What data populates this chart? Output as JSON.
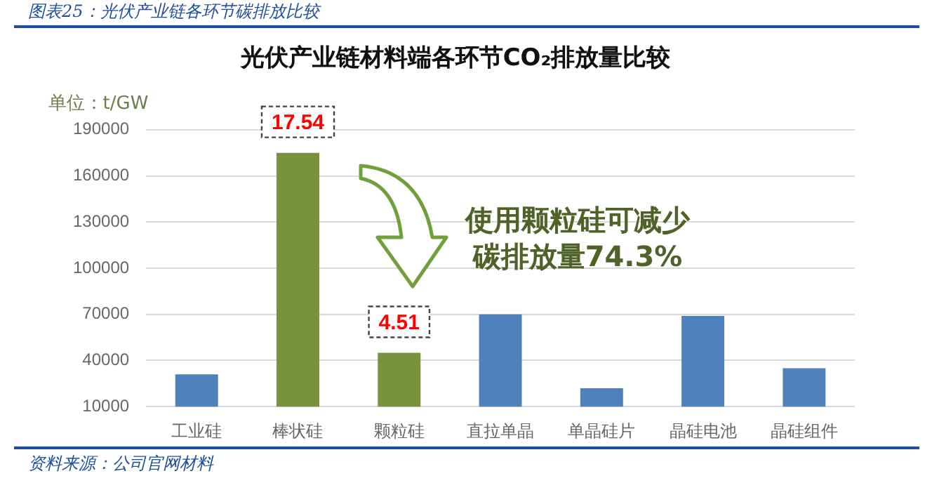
{
  "chart_data": {
    "type": "bar",
    "title": "图表25：光伏产业链各环节碳排放比较",
    "subtitle": "光伏产业链材料端各环节CO₂排放量比较",
    "ylabel": "单位：t/GW",
    "categories": [
      "工业硅",
      "棒状硅",
      "颗粒硅",
      "直拉单晶",
      "单晶硅片",
      "晶硅电池",
      "晶硅组件"
    ],
    "values": [
      31000,
      175000,
      45000,
      70000,
      22000,
      69000,
      35000
    ],
    "colors": [
      "#4f81bd",
      "#77933c",
      "#77933c",
      "#4f81bd",
      "#4f81bd",
      "#4f81bd",
      "#4f81bd"
    ],
    "ylim": [
      10000,
      190000
    ],
    "yticks": [
      10000,
      40000,
      70000,
      100000,
      130000,
      160000,
      190000
    ],
    "grid": "y",
    "annotations": [
      {
        "text": "17.54",
        "x": "棒状硅",
        "y": 175000
      },
      {
        "text": "4.51",
        "x": "颗粒硅",
        "y": 45000
      },
      "使用颗粒硅可减少",
      "碳排放量74.3%",
      "资料来源：公司官网材料"
    ]
  }
}
